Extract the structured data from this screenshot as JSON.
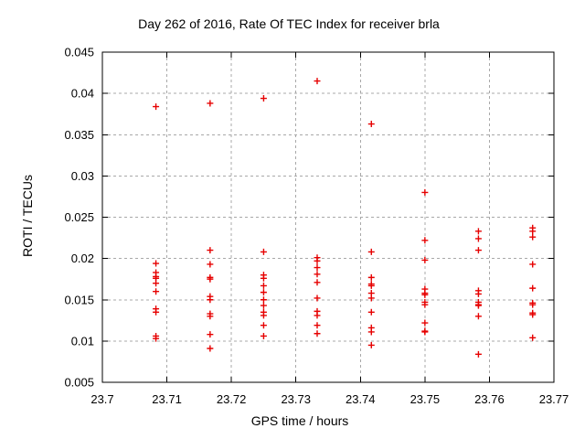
{
  "chart_data": {
    "type": "scatter",
    "title": "Day 262 of 2016, Rate Of TEC Index for receiver brla",
    "xlabel": "GPS time / hours",
    "ylabel": "ROTI / TECUs",
    "xlim": [
      23.7,
      23.77
    ],
    "ylim": [
      0.005,
      0.045
    ],
    "grid": true,
    "legend": "none",
    "marker": {
      "shape": "plus",
      "color": "#e60000",
      "size": 7
    },
    "axis_color": "#000000",
    "grid_color": "#a8a8a8",
    "x_ticks": [
      {
        "v": 23.7,
        "label": "23.7"
      },
      {
        "v": 23.71,
        "label": "23.71"
      },
      {
        "v": 23.72,
        "label": "23.72"
      },
      {
        "v": 23.73,
        "label": "23.73"
      },
      {
        "v": 23.74,
        "label": "23.74"
      },
      {
        "v": 23.75,
        "label": "23.75"
      },
      {
        "v": 23.76,
        "label": "23.76"
      },
      {
        "v": 23.77,
        "label": "23.77"
      }
    ],
    "y_ticks": [
      {
        "v": 0.005,
        "label": "0.005"
      },
      {
        "v": 0.01,
        "label": "0.01"
      },
      {
        "v": 0.015,
        "label": "0.015"
      },
      {
        "v": 0.02,
        "label": "0.02"
      },
      {
        "v": 0.025,
        "label": "0.025"
      },
      {
        "v": 0.03,
        "label": "0.03"
      },
      {
        "v": 0.035,
        "label": "0.035"
      },
      {
        "v": 0.04,
        "label": "0.04"
      },
      {
        "v": 0.045,
        "label": "0.045"
      }
    ],
    "series": [
      {
        "name": "ROTI",
        "points": [
          [
            23.7083,
            0.0384
          ],
          [
            23.7083,
            0.0194
          ],
          [
            23.7083,
            0.0183
          ],
          [
            23.7083,
            0.0178
          ],
          [
            23.7083,
            0.0176
          ],
          [
            23.7083,
            0.017
          ],
          [
            23.7083,
            0.016
          ],
          [
            23.7083,
            0.0139
          ],
          [
            23.7083,
            0.0135
          ],
          [
            23.7083,
            0.0106
          ],
          [
            23.7083,
            0.0103
          ],
          [
            23.7167,
            0.0388
          ],
          [
            23.7167,
            0.021
          ],
          [
            23.7167,
            0.0193
          ],
          [
            23.7167,
            0.0177
          ],
          [
            23.7167,
            0.0175
          ],
          [
            23.7167,
            0.0154
          ],
          [
            23.7167,
            0.015
          ],
          [
            23.7167,
            0.0133
          ],
          [
            23.7167,
            0.013
          ],
          [
            23.7167,
            0.0108
          ],
          [
            23.7167,
            0.0091
          ],
          [
            23.725,
            0.0394
          ],
          [
            23.725,
            0.0208
          ],
          [
            23.725,
            0.018
          ],
          [
            23.725,
            0.0176
          ],
          [
            23.725,
            0.0167
          ],
          [
            23.725,
            0.0159
          ],
          [
            23.725,
            0.015
          ],
          [
            23.725,
            0.0143
          ],
          [
            23.725,
            0.0135
          ],
          [
            23.725,
            0.0131
          ],
          [
            23.725,
            0.0119
          ],
          [
            23.725,
            0.0106
          ],
          [
            23.7333,
            0.0415
          ],
          [
            23.7333,
            0.0201
          ],
          [
            23.7333,
            0.0197
          ],
          [
            23.7333,
            0.0189
          ],
          [
            23.7333,
            0.0181
          ],
          [
            23.7333,
            0.0171
          ],
          [
            23.7333,
            0.0152
          ],
          [
            23.7333,
            0.0136
          ],
          [
            23.7333,
            0.0131
          ],
          [
            23.7333,
            0.0119
          ],
          [
            23.7333,
            0.0109
          ],
          [
            23.7417,
            0.0363
          ],
          [
            23.7417,
            0.0208
          ],
          [
            23.7417,
            0.0177
          ],
          [
            23.7417,
            0.0169
          ],
          [
            23.7417,
            0.0167
          ],
          [
            23.7417,
            0.0158
          ],
          [
            23.7417,
            0.0152
          ],
          [
            23.7417,
            0.0135
          ],
          [
            23.7417,
            0.0116
          ],
          [
            23.7417,
            0.0111
          ],
          [
            23.7417,
            0.0095
          ],
          [
            23.75,
            0.028
          ],
          [
            23.75,
            0.0222
          ],
          [
            23.75,
            0.0198
          ],
          [
            23.75,
            0.0163
          ],
          [
            23.75,
            0.0158
          ],
          [
            23.75,
            0.0156
          ],
          [
            23.75,
            0.0147
          ],
          [
            23.75,
            0.0144
          ],
          [
            23.75,
            0.0122
          ],
          [
            23.75,
            0.0112
          ],
          [
            23.75,
            0.0111
          ],
          [
            23.7583,
            0.0233
          ],
          [
            23.7583,
            0.0224
          ],
          [
            23.7583,
            0.021
          ],
          [
            23.7583,
            0.0161
          ],
          [
            23.7583,
            0.0157
          ],
          [
            23.7583,
            0.0147
          ],
          [
            23.7583,
            0.0144
          ],
          [
            23.7583,
            0.0143
          ],
          [
            23.7583,
            0.013
          ],
          [
            23.7583,
            0.0084
          ],
          [
            23.7667,
            0.0237
          ],
          [
            23.7667,
            0.0233
          ],
          [
            23.7667,
            0.0226
          ],
          [
            23.7667,
            0.0193
          ],
          [
            23.7667,
            0.0164
          ],
          [
            23.7667,
            0.0146
          ],
          [
            23.7667,
            0.0144
          ],
          [
            23.7667,
            0.0134
          ],
          [
            23.7667,
            0.0132
          ],
          [
            23.7667,
            0.0104
          ]
        ]
      }
    ]
  }
}
